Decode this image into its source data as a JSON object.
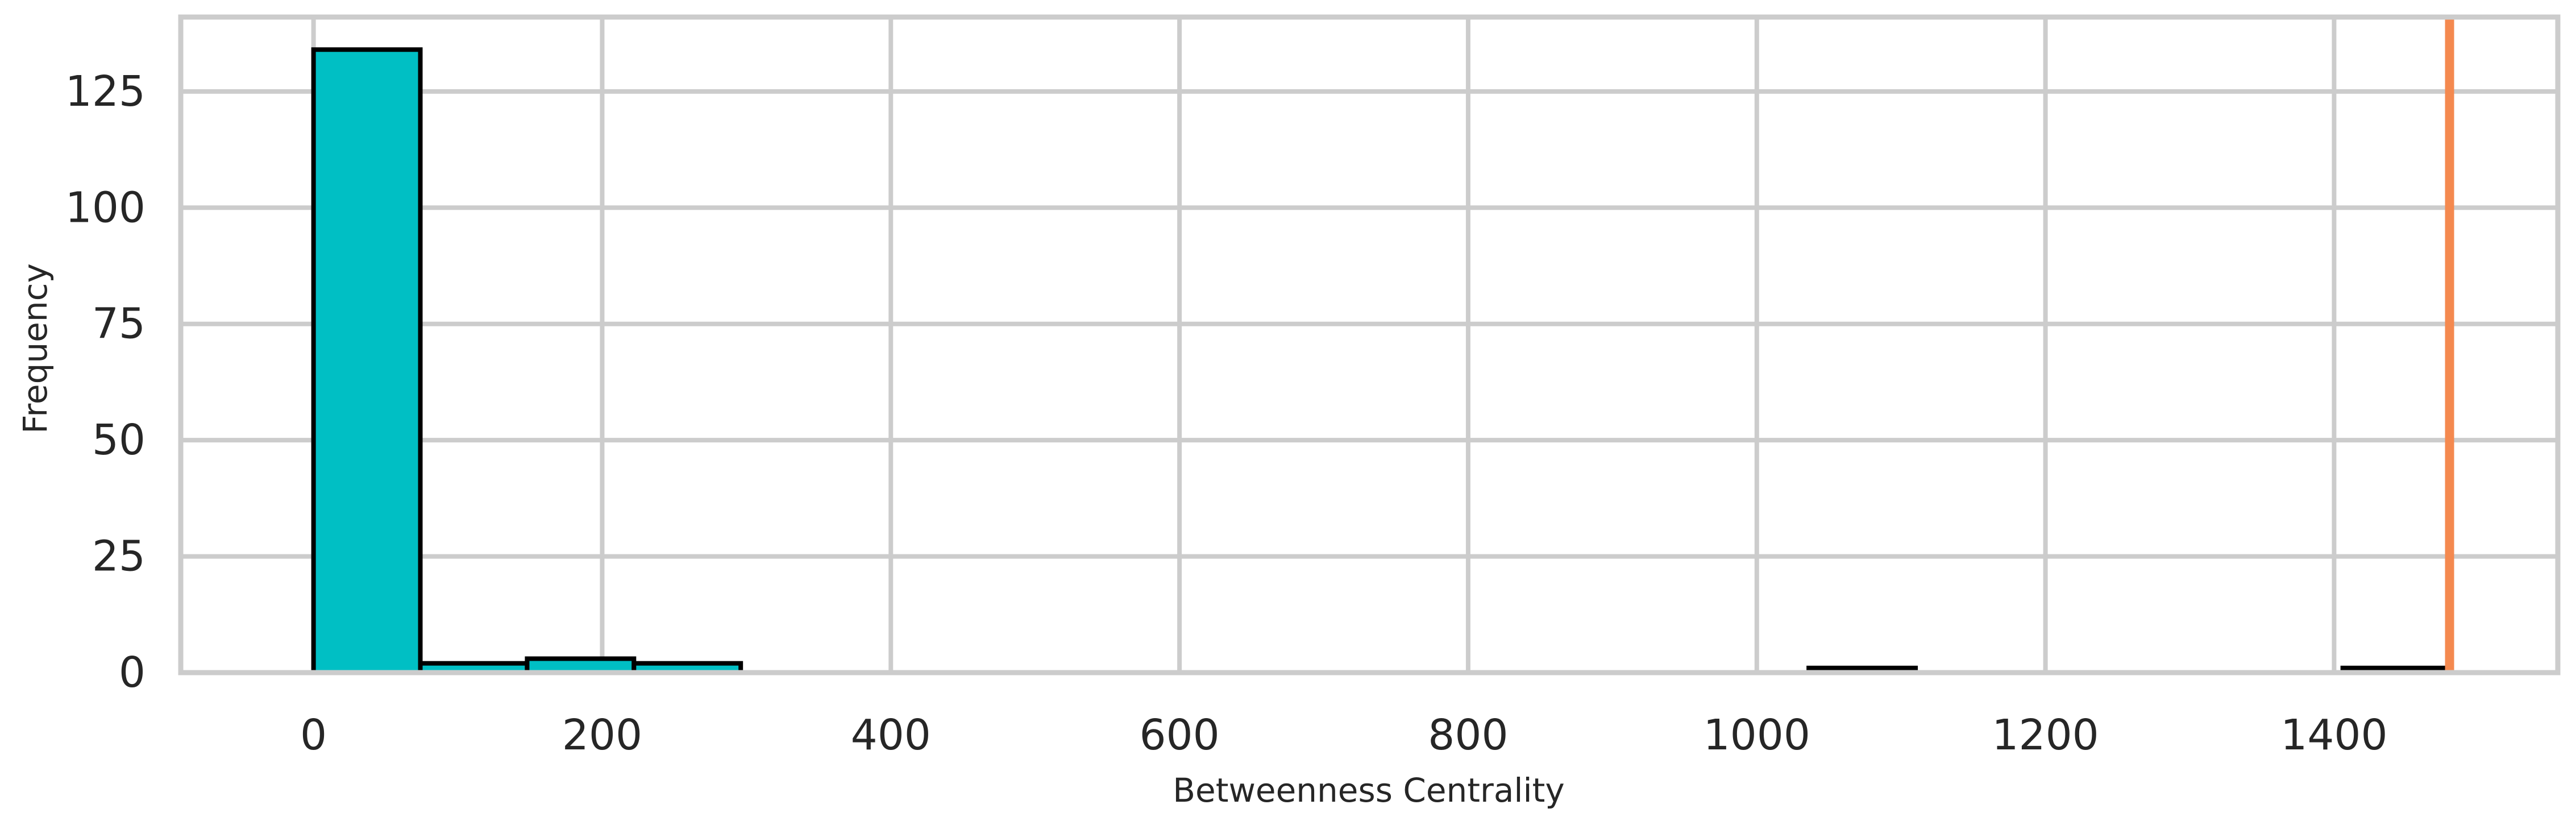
{
  "chart_data": {
    "type": "bar",
    "title": "",
    "xlabel": "Betweenness Centrality",
    "ylabel": "Frequency",
    "xlim": [
      -92,
      1555
    ],
    "ylim": [
      0,
      141
    ],
    "xticks": [
      0,
      200,
      400,
      600,
      800,
      1000,
      1200,
      1400
    ],
    "yticks": [
      0,
      25,
      50,
      75,
      100,
      125
    ],
    "grid": true,
    "bar_color": "#00bfc4",
    "edge_color": "#000000",
    "bins": [
      {
        "x0": 0,
        "x1": 74,
        "count": 134
      },
      {
        "x0": 74,
        "x1": 148,
        "count": 2
      },
      {
        "x0": 148,
        "x1": 222,
        "count": 3
      },
      {
        "x0": 222,
        "x1": 296,
        "count": 2
      },
      {
        "x0": 1036,
        "x1": 1110,
        "count": 1
      },
      {
        "x0": 1406,
        "x1": 1480,
        "count": 1
      }
    ],
    "vline": {
      "x": 1480,
      "color": "#f4894f"
    }
  }
}
